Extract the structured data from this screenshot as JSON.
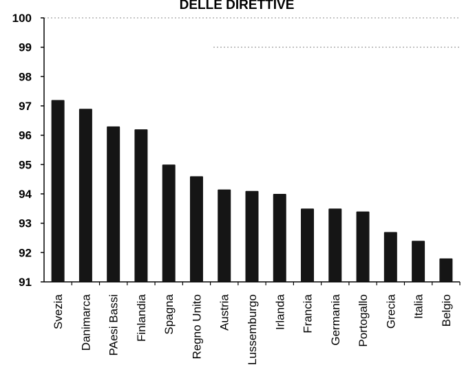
{
  "chart_data": {
    "type": "bar",
    "title": "DELLE DIRETTIVE",
    "xlabel": "",
    "ylabel": "",
    "categories": [
      "Svezia",
      "Danimarca",
      "PAesi Bassi",
      "Finlandia",
      "Spagna",
      "Regno Unito",
      "Austria",
      "Lussemburgo",
      "Irlanda",
      "Francia",
      "Germania",
      "Portogallo",
      "Grecia",
      "Italia",
      "Belgio"
    ],
    "values": [
      97.2,
      96.9,
      96.3,
      96.2,
      95.0,
      94.6,
      94.15,
      94.1,
      94.0,
      93.5,
      93.5,
      93.4,
      92.7,
      92.4,
      91.8
    ],
    "ylim": [
      91,
      100
    ],
    "yticks": [
      "91",
      "92",
      "93",
      "94",
      "95",
      "96",
      "97",
      "98",
      "99",
      "100"
    ],
    "grid": "horizontal dotted at 100 and 99",
    "legend": "none",
    "bar_color": "#151515"
  }
}
